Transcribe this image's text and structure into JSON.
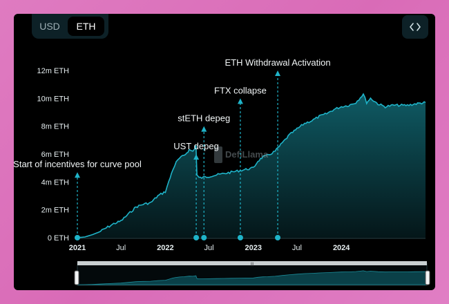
{
  "toggle": {
    "options": [
      "USD",
      "ETH"
    ],
    "selected": "ETH"
  },
  "toolbar": {
    "embed_icon": "code-brackets-icon"
  },
  "colors": {
    "line": "#1fb4c9",
    "fill_top": "#0f5c66",
    "background": "#000000"
  },
  "watermark": "DefiLlama",
  "chart_data": {
    "type": "area",
    "title": "",
    "xlabel": "",
    "ylabel": "",
    "y_unit": "ETH",
    "ylim": [
      0,
      12000000
    ],
    "y_ticks": [
      0,
      2000000,
      4000000,
      6000000,
      8000000,
      10000000,
      12000000
    ],
    "y_tick_labels": [
      "0 ETH",
      "2m ETH",
      "4m ETH",
      "6m ETH",
      "8m ETH",
      "10m ETH",
      "12m ETH"
    ],
    "xlim": [
      "2021-01-01",
      "2024-12-15"
    ],
    "x_ticks": [
      "2021-01-01",
      "2021-07-01",
      "2022-01-01",
      "2022-07-01",
      "2023-01-01",
      "2023-07-01",
      "2024-01-01"
    ],
    "x_tick_labels": [
      "2021",
      "Jul",
      "2022",
      "Jul",
      "2023",
      "Jul",
      "2024"
    ],
    "x_tick_bold": [
      true,
      false,
      true,
      false,
      true,
      false,
      true
    ],
    "grid": false,
    "series": [
      {
        "name": "",
        "points": [
          [
            "2021-01-01",
            0
          ],
          [
            "2021-02-01",
            50000
          ],
          [
            "2021-03-01",
            200000
          ],
          [
            "2021-04-01",
            400000
          ],
          [
            "2021-05-01",
            700000
          ],
          [
            "2021-06-01",
            1000000
          ],
          [
            "2021-07-01",
            1200000
          ],
          [
            "2021-08-01",
            1700000
          ],
          [
            "2021-09-01",
            2200000
          ],
          [
            "2021-10-01",
            2400000
          ],
          [
            "2021-11-01",
            2500000
          ],
          [
            "2021-12-01",
            3000000
          ],
          [
            "2022-01-01",
            3300000
          ],
          [
            "2022-01-15",
            4000000
          ],
          [
            "2022-02-01",
            4900000
          ],
          [
            "2022-02-15",
            5400000
          ],
          [
            "2022-03-01",
            5700000
          ],
          [
            "2022-03-20",
            5900000
          ],
          [
            "2022-04-10",
            6300000
          ],
          [
            "2022-04-25",
            6200000
          ],
          [
            "2022-05-08",
            6600000
          ],
          [
            "2022-05-12",
            4500000
          ],
          [
            "2022-05-20",
            4300000
          ],
          [
            "2022-06-01",
            4300000
          ],
          [
            "2022-06-15",
            4350000
          ],
          [
            "2022-07-01",
            4400000
          ],
          [
            "2022-08-01",
            4500000
          ],
          [
            "2022-09-01",
            4600000
          ],
          [
            "2022-10-01",
            4700000
          ],
          [
            "2022-11-01",
            4800000
          ],
          [
            "2022-12-01",
            4900000
          ],
          [
            "2023-01-01",
            5000000
          ],
          [
            "2023-01-20",
            5500000
          ],
          [
            "2023-02-10",
            5800000
          ],
          [
            "2023-03-01",
            5900000
          ],
          [
            "2023-04-01",
            6200000
          ],
          [
            "2023-05-01",
            6800000
          ],
          [
            "2023-06-01",
            7400000
          ],
          [
            "2023-07-01",
            7800000
          ],
          [
            "2023-08-01",
            8200000
          ],
          [
            "2023-09-01",
            8400000
          ],
          [
            "2023-10-01",
            8700000
          ],
          [
            "2023-11-01",
            8900000
          ],
          [
            "2023-12-01",
            9200000
          ],
          [
            "2024-01-01",
            9400000
          ],
          [
            "2024-02-01",
            9500000
          ],
          [
            "2024-03-01",
            9700000
          ],
          [
            "2024-04-01",
            10300000
          ],
          [
            "2024-04-15",
            9700000
          ],
          [
            "2024-05-01",
            10000000
          ],
          [
            "2024-06-01",
            9600000
          ],
          [
            "2024-07-01",
            9400000
          ],
          [
            "2024-08-01",
            9500000
          ],
          [
            "2024-09-01",
            9500000
          ],
          [
            "2024-10-01",
            9500000
          ],
          [
            "2024-11-01",
            9600000
          ],
          [
            "2024-12-15",
            9700000
          ]
        ]
      }
    ],
    "annotations": [
      {
        "date": "2021-01-01",
        "label": "Start of incentives for curve pool",
        "arrow_top": 4700000
      },
      {
        "date": "2022-05-09",
        "label": "UST depeg",
        "arrow_top": 6000000
      },
      {
        "date": "2022-06-10",
        "label": "stETH depeg",
        "arrow_top": 8000000
      },
      {
        "date": "2022-11-08",
        "label": "FTX collapse",
        "arrow_top": 10000000
      },
      {
        "date": "2023-04-12",
        "label": "ETH Withdrawal Activation",
        "arrow_top": 12000000
      }
    ]
  }
}
